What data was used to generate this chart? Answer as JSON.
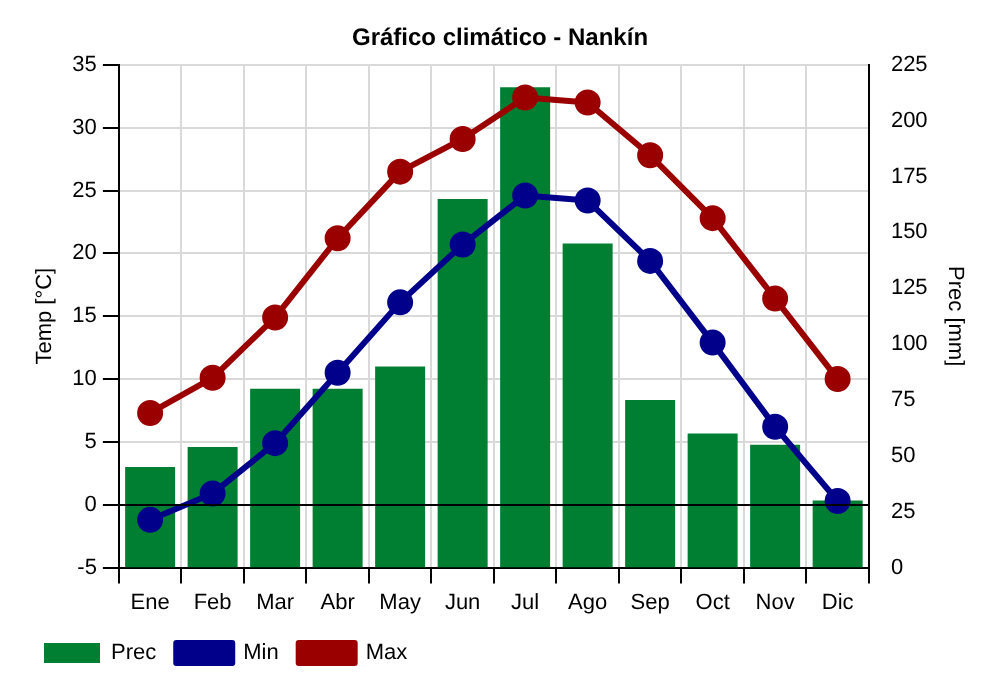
{
  "chart_data": {
    "type": "bar",
    "title": "Gráfico climático - Nankín",
    "ylabel": "Temp [°C]",
    "y2label": "Prec [mm]",
    "categories": [
      "Ene",
      "Feb",
      "Mar",
      "Abr",
      "May",
      "Jun",
      "Jul",
      "Ago",
      "Sep",
      "Oct",
      "Nov",
      "Dic"
    ],
    "series": [
      {
        "name": "Prec",
        "axis": "y2",
        "color": "#007f33",
        "values": [
          45,
          54,
          80,
          80,
          90,
          165,
          215,
          145,
          75,
          60,
          55,
          30
        ]
      },
      {
        "name": "Min",
        "type": "line",
        "axis": "y",
        "color": "#00008b",
        "values": [
          -1.2,
          0.9,
          4.9,
          10.5,
          16.1,
          20.7,
          24.6,
          24.2,
          19.4,
          12.9,
          6.2,
          0.3
        ]
      },
      {
        "name": "Max",
        "type": "line",
        "axis": "y",
        "color": "#9b0000",
        "values": [
          7.3,
          10.1,
          14.9,
          21.2,
          26.5,
          29.1,
          32.4,
          32.0,
          27.8,
          22.8,
          16.4,
          10.0
        ]
      }
    ],
    "ylim": [
      -5,
      35
    ],
    "yticks": [
      -5,
      0,
      5,
      10,
      15,
      20,
      25,
      30,
      35
    ],
    "y2lim": [
      0,
      225
    ],
    "y2ticks": [
      0,
      25,
      50,
      75,
      100,
      125,
      150,
      175,
      200,
      225
    ],
    "ref_lines": [
      {
        "axis": "y",
        "value": 0,
        "color": "#000000"
      }
    ],
    "grid": true,
    "legend": "bottom left",
    "marker": "circle",
    "line_style": "solid"
  }
}
